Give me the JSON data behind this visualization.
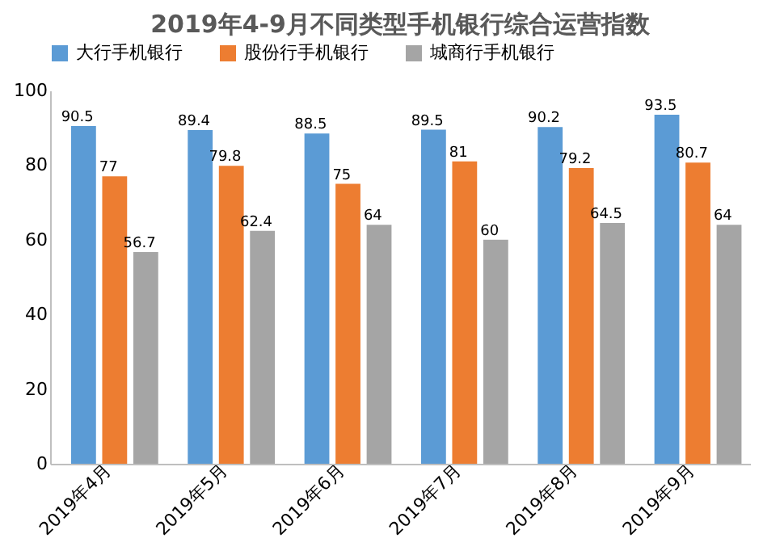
{
  "chart_data": {
    "type": "bar",
    "title": "2019年4-9月不同类型手机银行综合运营指数",
    "categories": [
      "2019年4月",
      "2019年5月",
      "2019年6月",
      "2019年7月",
      "2019年8月",
      "2019年9月"
    ],
    "series": [
      {
        "name": "大行手机银行",
        "color": "#5b9bd5",
        "values": [
          90.5,
          89.4,
          88.5,
          89.5,
          90.2,
          93.5
        ]
      },
      {
        "name": "股份行手机银行",
        "color": "#ed7d31",
        "values": [
          77,
          79.8,
          75,
          81,
          79.2,
          80.7
        ]
      },
      {
        "name": "城商行手机银行",
        "color": "#a5a5a5",
        "values": [
          56.7,
          62.4,
          64,
          60,
          64.5,
          64
        ]
      }
    ],
    "data_labels": true,
    "ylim": [
      0,
      100
    ],
    "yticks": [
      0,
      20,
      40,
      60,
      80,
      100
    ],
    "grid": false,
    "legend": "top"
  }
}
